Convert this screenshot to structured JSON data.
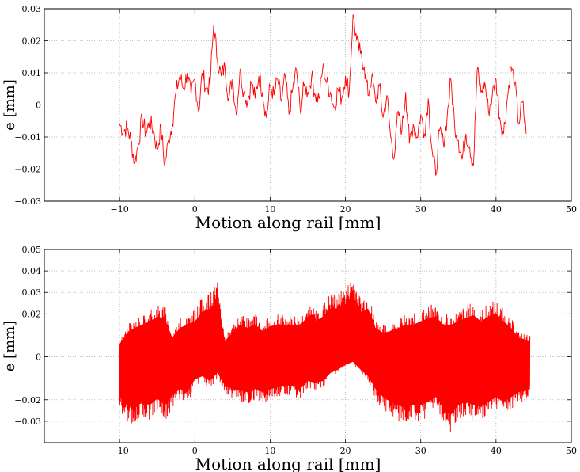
{
  "chart_data": [
    {
      "type": "line",
      "xlabel": "Motion along rail [mm]",
      "ylabel": "e [mm]",
      "xlim": [
        -20,
        50
      ],
      "ylim": [
        -0.03,
        0.03
      ],
      "xticks": [
        -10,
        0,
        10,
        20,
        30,
        40,
        50
      ],
      "xtick_labels": [
        "−10",
        "0",
        "10",
        "20",
        "30",
        "40",
        "50"
      ],
      "yticks": [
        -0.03,
        -0.02,
        -0.01,
        0,
        0.01,
        0.02,
        0.03
      ],
      "ytick_labels": [
        "−0.03",
        "−0.02",
        "−0.01",
        "0",
        "0.01",
        "0.02",
        "0.03"
      ],
      "grid": true,
      "line_color": "#ff0000",
      "series": [
        {
          "x": [
            -10.0,
            -9.5,
            -9.0,
            -8.5,
            -8.0,
            -7.5,
            -7.0,
            -6.5,
            -6.0,
            -5.5,
            -5.0,
            -4.5,
            -4.0,
            -3.5,
            -3.0,
            -2.5,
            -2.0,
            -1.5,
            -1.0,
            -0.5,
            0.0,
            0.5,
            1.0,
            1.5,
            2.0,
            2.5,
            3.0,
            3.5,
            4.0,
            4.5,
            5.0,
            5.5,
            6.0,
            6.5,
            7.0,
            7.5,
            8.0,
            8.5,
            9.0,
            9.5,
            10.0,
            10.5,
            11.0,
            11.5,
            12.0,
            12.5,
            13.0,
            13.5,
            14.0,
            14.5,
            15.0,
            15.5,
            16.0,
            16.5,
            17.0,
            17.5,
            18.0,
            18.5,
            19.0,
            19.5,
            20.0,
            20.5,
            21.0,
            21.5,
            22.0,
            22.5,
            23.0,
            23.5,
            24.0,
            24.5,
            25.0,
            25.5,
            26.0,
            26.5,
            27.0,
            27.5,
            28.0,
            28.5,
            29.0,
            29.5,
            30.0,
            30.5,
            31.0,
            31.5,
            32.0,
            32.5,
            33.0,
            33.5,
            34.0,
            34.5,
            35.0,
            35.5,
            36.0,
            36.5,
            37.0,
            37.5,
            38.0,
            38.5,
            39.0,
            39.5,
            40.0,
            40.5,
            41.0,
            41.5,
            42.0,
            42.5,
            43.0,
            43.5,
            44.0
          ],
          "y": [
            -0.006,
            -0.008,
            -0.007,
            -0.011,
            -0.018,
            -0.012,
            -0.004,
            -0.009,
            -0.005,
            -0.008,
            -0.014,
            -0.007,
            -0.019,
            -0.011,
            -0.006,
            0.004,
            0.009,
            0.005,
            0.01,
            0.003,
            0.008,
            -0.002,
            0.01,
            0.005,
            0.006,
            0.025,
            0.014,
            0.009,
            0.012,
            0.002,
            0.008,
            -0.003,
            0.011,
            0.004,
            0.001,
            0.007,
            0.002,
            0.009,
            0.004,
            -0.004,
            0.006,
            0.003,
            0.008,
            0.001,
            0.009,
            -0.003,
            0.005,
            0.011,
            -0.002,
            0.006,
            0.004,
            0.009,
            0.003,
            0.002,
            0.012,
            0.007,
            0.004,
            -0.001,
            0.005,
            0.002,
            0.009,
            0.004,
            0.028,
            0.02,
            0.016,
            0.012,
            0.003,
            0.009,
            0.001,
            0.006,
            -0.004,
            0.003,
            -0.01,
            -0.016,
            -0.002,
            -0.008,
            0.004,
            -0.012,
            -0.006,
            -0.01,
            -0.003,
            -0.009,
            0.002,
            -0.014,
            -0.022,
            -0.008,
            -0.012,
            -0.004,
            0.008,
            -0.006,
            -0.011,
            -0.017,
            -0.009,
            -0.013,
            -0.019,
            0.011,
            0.004,
            0.007,
            -0.002,
            0.003,
            0.008,
            -0.004,
            -0.009,
            0.002,
            0.012,
            0.007,
            -0.006,
            0.001,
            -0.009
          ]
        }
      ]
    },
    {
      "type": "line",
      "xlabel": "Motion along rail [mm]",
      "ylabel": "e [mm]",
      "xlim": [
        -20,
        50
      ],
      "ylim": [
        -0.04,
        0.05
      ],
      "xticks": [
        -10,
        0,
        10,
        20,
        30,
        40,
        50
      ],
      "xtick_labels": [
        "−10",
        "0",
        "10",
        "20",
        "30",
        "40",
        "50"
      ],
      "yticks": [
        -0.03,
        -0.02,
        0,
        0.02,
        0.03,
        0.04,
        0.05
      ],
      "ytick_labels": [
        "−0.03",
        "−0.02",
        "0",
        "0.02",
        "0.03",
        "0.04",
        "0.05"
      ],
      "grid": true,
      "line_color": "#ff0000",
      "series": [
        {
          "x": [
            -10.0,
            -9.0,
            -8.0,
            -7.0,
            -6.0,
            -5.0,
            -4.0,
            -3.0,
            -2.0,
            -1.0,
            0.0,
            1.0,
            2.0,
            3.0,
            4.0,
            5.0,
            6.0,
            7.0,
            8.0,
            9.0,
            10.0,
            11.0,
            12.0,
            13.0,
            14.0,
            15.0,
            16.0,
            17.0,
            18.0,
            19.0,
            20.0,
            21.0,
            22.0,
            23.0,
            24.0,
            25.0,
            26.0,
            27.0,
            28.0,
            29.0,
            30.0,
            31.0,
            32.0,
            33.0,
            34.0,
            35.0,
            36.0,
            37.0,
            38.0,
            39.0,
            40.0,
            41.0,
            42.0,
            43.0,
            44.5
          ],
          "upper": [
            0.008,
            0.015,
            0.018,
            0.02,
            0.022,
            0.025,
            0.024,
            0.012,
            0.018,
            0.02,
            0.022,
            0.028,
            0.03,
            0.035,
            0.01,
            0.015,
            0.02,
            0.018,
            0.02,
            0.016,
            0.019,
            0.02,
            0.02,
            0.02,
            0.02,
            0.025,
            0.022,
            0.025,
            0.03,
            0.03,
            0.032,
            0.038,
            0.028,
            0.03,
            0.018,
            0.015,
            0.016,
            0.018,
            0.02,
            0.02,
            0.022,
            0.024,
            0.025,
            0.02,
            0.02,
            0.022,
            0.024,
            0.026,
            0.022,
            0.025,
            0.027,
            0.022,
            0.018,
            0.012,
            0.01
          ],
          "lower": [
            -0.025,
            -0.03,
            -0.032,
            -0.028,
            -0.03,
            -0.026,
            -0.03,
            -0.024,
            -0.02,
            -0.022,
            -0.014,
            -0.012,
            -0.015,
            -0.01,
            -0.018,
            -0.02,
            -0.021,
            -0.022,
            -0.02,
            -0.022,
            -0.02,
            -0.019,
            -0.018,
            -0.018,
            -0.02,
            -0.015,
            -0.016,
            -0.015,
            -0.01,
            -0.008,
            -0.005,
            -0.003,
            -0.008,
            -0.012,
            -0.02,
            -0.025,
            -0.028,
            -0.03,
            -0.032,
            -0.03,
            -0.03,
            -0.028,
            -0.025,
            -0.032,
            -0.036,
            -0.03,
            -0.028,
            -0.03,
            -0.031,
            -0.028,
            -0.025,
            -0.028,
            -0.025,
            -0.022,
            -0.02
          ]
        }
      ]
    }
  ]
}
